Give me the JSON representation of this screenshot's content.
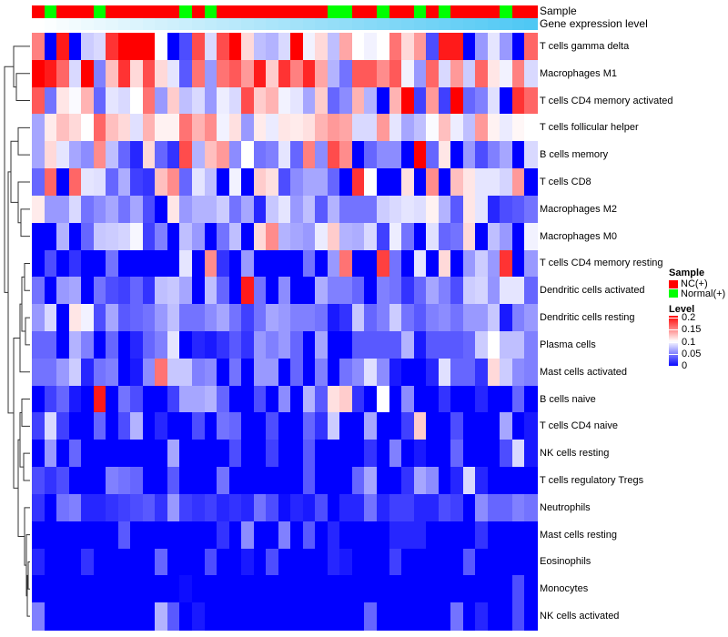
{
  "chart_data": {
    "type": "heatmap",
    "annotation_labels": {
      "sample": "Sample",
      "gene": "Gene expression level"
    },
    "rows": [
      "T cells gamma delta",
      "Macrophages M1",
      "T cells CD4 memory activated",
      "T cells follicular helper",
      "B cells memory",
      "T cells CD8",
      "Macrophages M2",
      "Macrophages M0",
      "T cells CD4 memory resting",
      "Dendritic cells activated",
      "Dendritic cells resting",
      "Plasma cells",
      "Mast cells activated",
      "B cells naive",
      "T cells CD4 naive",
      "NK cells resting",
      "T cells regulatory  Tregs",
      "Neutrophils",
      "Mast cells resting",
      "Eosinophils",
      "Monocytes",
      "NK cells activated"
    ],
    "sample_groups": [
      "NC(+)",
      "Normal(+)",
      "NC(+)",
      "NC(+)",
      "NC(+)",
      "Normal(+)",
      "NC(+)",
      "NC(+)",
      "NC(+)",
      "NC(+)",
      "NC(+)",
      "NC(+)",
      "Normal(+)",
      "NC(+)",
      "Normal(+)",
      "NC(+)",
      "NC(+)",
      "NC(+)",
      "NC(+)",
      "NC(+)",
      "NC(+)",
      "NC(+)",
      "NC(+)",
      "NC(+)",
      "Normal(+)",
      "Normal(+)",
      "NC(+)",
      "NC(+)",
      "Normal(+)",
      "NC(+)",
      "NC(+)",
      "Normal(+)",
      "NC(+)",
      "Normal(+)",
      "NC(+)",
      "NC(+)",
      "NC(+)",
      "NC(+)",
      "Normal(+)",
      "NC(+)",
      "NC(+)"
    ],
    "values": [
      [
        0.15,
        0,
        0.19,
        0,
        0.08,
        0.085,
        0.18,
        0.2,
        0.2,
        0.2,
        0.1,
        0,
        0.03,
        0.17,
        0.085,
        0.17,
        0.2,
        0.115,
        0.075,
        0.07,
        0.085,
        0.2,
        0.095,
        0.115,
        0.075,
        0.135,
        0.1,
        0.095,
        0.1,
        0.155,
        0.115,
        0.14,
        0.03,
        0.19,
        0.19,
        0,
        0.06,
        0.09,
        0.06,
        0,
        0.16
      ],
      [
        0.2,
        0.19,
        0.16,
        0.085,
        0.2,
        0.05,
        0.125,
        0.18,
        0.115,
        0.17,
        0.115,
        0.09,
        0.035,
        0.155,
        0.06,
        0.155,
        0.165,
        0.14,
        0.19,
        0.12,
        0.18,
        0.15,
        0.185,
        0.135,
        0.07,
        0.045,
        0.165,
        0.165,
        0.145,
        0.165,
        0.095,
        0.06,
        0.16,
        0.085,
        0.14,
        0.08,
        0.16,
        0.11,
        0.095,
        0.15,
        0.085
      ],
      [
        0.165,
        0.045,
        0.11,
        0.098,
        0.13,
        0.04,
        0.09,
        0.085,
        0.1,
        0.155,
        0.06,
        0.12,
        0.075,
        0.085,
        0.06,
        0.093,
        0.085,
        0.17,
        0.12,
        0.13,
        0.095,
        0.09,
        0.065,
        0.12,
        0.04,
        0.055,
        0.13,
        0.07,
        0,
        0.13,
        0.2,
        0.025,
        0.14,
        0.025,
        0.2,
        0.04,
        0.05,
        0.088,
        0,
        0.18,
        0.16
      ],
      [
        0.065,
        0.108,
        0.125,
        0.115,
        0.1,
        0.16,
        0.125,
        0.115,
        0.088,
        0.13,
        0.105,
        0.105,
        0.155,
        0.13,
        0.145,
        0.095,
        0.112,
        0.06,
        0.108,
        0.092,
        0.11,
        0.108,
        0.112,
        0.13,
        0.14,
        0.135,
        0.085,
        0.085,
        0.14,
        0.09,
        0.065,
        0.075,
        0.098,
        0.125,
        0.093,
        0.075,
        0.14,
        0.105,
        0.092,
        0.103,
        0.1
      ],
      [
        0.065,
        0.115,
        0.09,
        0.065,
        0.055,
        0.145,
        0.075,
        0.04,
        0.015,
        0.115,
        0.04,
        0.02,
        0.17,
        0.07,
        0.125,
        0.14,
        0.055,
        0.1,
        0.045,
        0.05,
        0.09,
        0.04,
        0.15,
        0.055,
        0.17,
        0.145,
        0,
        0.04,
        0.055,
        0.055,
        0,
        0.2,
        0.04,
        0.11,
        0,
        0.06,
        0.03,
        0.05,
        0.065,
        0,
        0.085
      ],
      [
        0.04,
        0.16,
        0,
        0.16,
        0.09,
        0.088,
        0.04,
        0.068,
        0.025,
        0.02,
        0.125,
        0.145,
        0.04,
        0.09,
        0.075,
        0,
        0.095,
        0,
        0.12,
        0.112,
        0.03,
        0.055,
        0.065,
        0.065,
        0.04,
        0,
        0.18,
        0.1,
        0,
        0,
        0.112,
        0,
        0.145,
        0,
        0.125,
        0.11,
        0.09,
        0.09,
        0.083,
        0.14,
        0
      ],
      [
        0.108,
        0.06,
        0.06,
        0.085,
        0.045,
        0.055,
        0.065,
        0.045,
        0.065,
        0.03,
        0,
        0.11,
        0.06,
        0.07,
        0.07,
        0.08,
        0.045,
        0.065,
        0.015,
        0.078,
        0.09,
        0.06,
        0.075,
        0.035,
        0.07,
        0.045,
        0.045,
        0.045,
        0.08,
        0.085,
        0.09,
        0.087,
        0.105,
        0.07,
        0.035,
        0.11,
        0.09,
        0.015,
        0.03,
        0.035,
        0.045
      ],
      [
        0,
        0,
        0.07,
        0,
        0.04,
        0.078,
        0.08,
        0.083,
        0.097,
        0.025,
        0.05,
        0,
        0.075,
        0.06,
        0,
        0.045,
        0.075,
        0,
        0.115,
        0.145,
        0.07,
        0.065,
        0.06,
        0.092,
        0.12,
        0.07,
        0.068,
        0.085,
        0.025,
        0.093,
        0.045,
        0,
        0.088,
        0.04,
        0.045,
        0.115,
        0,
        0.075,
        0.06,
        0,
        0.095
      ],
      [
        0,
        0.03,
        0,
        0.02,
        0,
        0,
        0.045,
        0,
        0,
        0,
        0,
        0,
        0.09,
        0,
        0.145,
        0.02,
        0,
        0.06,
        0,
        0,
        0,
        0,
        0.045,
        0,
        0.06,
        0.155,
        0,
        0,
        0.175,
        0.045,
        0,
        0.09,
        0,
        0.115,
        0,
        0.06,
        0.08,
        0.06,
        0.18,
        0,
        0.06
      ],
      [
        0.045,
        0,
        0.06,
        0.065,
        0,
        0.045,
        0.03,
        0.025,
        0.04,
        0.02,
        0.075,
        0.078,
        0.065,
        0,
        0.075,
        0.04,
        0,
        0.19,
        0.045,
        0,
        0.055,
        0,
        0,
        0.068,
        0.05,
        0.05,
        0.04,
        0,
        0.05,
        0.045,
        0.02,
        0.04,
        0.065,
        0.05,
        0.03,
        0.08,
        0.083,
        0.058,
        0.09,
        0.09,
        0.04
      ],
      [
        0.06,
        0.085,
        0,
        0.11,
        0.095,
        0.03,
        0.065,
        0.035,
        0.04,
        0.045,
        0.06,
        0.075,
        0.045,
        0.045,
        0.055,
        0.065,
        0.045,
        0.025,
        0.045,
        0.065,
        0.06,
        0.05,
        0.05,
        0.045,
        0.01,
        0.02,
        0.078,
        0.04,
        0.05,
        0.08,
        0.045,
        0.035,
        0.05,
        0.055,
        0.045,
        0.06,
        0.06,
        0.078,
        0.01,
        0.05,
        0.06
      ],
      [
        0.04,
        0.04,
        0,
        0.07,
        0.05,
        0,
        0.04,
        0,
        0.015,
        0.04,
        0.05,
        0.09,
        0,
        0.015,
        0.01,
        0.02,
        0.035,
        0.02,
        0.06,
        0.05,
        0.06,
        0.04,
        0,
        0.065,
        0,
        0,
        0.035,
        0.035,
        0.035,
        0.035,
        0.07,
        0.01,
        0.035,
        0.035,
        0.035,
        0.04,
        0.08,
        0.1,
        0.075,
        0.075,
        0.05
      ],
      [
        0.045,
        0.045,
        0.06,
        0.08,
        0.015,
        0.045,
        0.05,
        0,
        0.01,
        0.055,
        0.155,
        0.078,
        0.078,
        0.05,
        0.055,
        0,
        0.045,
        0,
        0.06,
        0.06,
        0,
        0.04,
        0,
        0.05,
        0,
        0.045,
        0.055,
        0.088,
        0.055,
        0.01,
        0,
        0,
        0.015,
        0.088,
        0.04,
        0.04,
        0.02,
        0.115,
        0.08,
        0.055,
        0.05
      ],
      [
        0,
        0.025,
        0.04,
        0.01,
        0,
        0.19,
        0,
        0.045,
        0.03,
        0,
        0,
        0.025,
        0.065,
        0.065,
        0.07,
        0.04,
        0,
        0,
        0.03,
        0,
        0.055,
        0,
        0.07,
        0.035,
        0.112,
        0.12,
        0.02,
        0,
        0.1,
        0,
        0.055,
        0,
        0,
        0.02,
        0,
        0,
        0.015,
        0,
        0,
        0.04,
        0
      ],
      [
        0.025,
        0.085,
        0.025,
        0,
        0,
        0.04,
        0,
        0.03,
        0.07,
        0,
        0.015,
        0,
        0,
        0.03,
        0,
        0.045,
        0.04,
        0,
        0,
        0.03,
        0,
        0,
        0.04,
        0.02,
        0.08,
        0,
        0,
        0.065,
        0,
        0,
        0.025,
        0.12,
        0,
        0,
        0.03,
        0,
        0,
        0,
        0.065,
        0,
        0.01
      ],
      [
        0,
        0.06,
        0,
        0.04,
        0,
        0,
        0,
        0,
        0,
        0,
        0,
        0.065,
        0,
        0,
        0,
        0,
        0.03,
        0,
        0,
        0.025,
        0,
        0,
        0.035,
        0,
        0,
        0,
        0,
        0.02,
        0,
        0.05,
        0,
        0.01,
        0,
        0,
        0.04,
        0,
        0,
        0,
        0.03,
        0.085,
        0.01
      ],
      [
        0.03,
        0.02,
        0.03,
        0,
        0,
        0,
        0.05,
        0.045,
        0.04,
        0,
        0,
        0.035,
        0,
        0,
        0,
        0.045,
        0,
        0,
        0,
        0,
        0,
        0,
        0.035,
        0,
        0,
        0,
        0.04,
        0.065,
        0,
        0,
        0.02,
        0.065,
        0.055,
        0,
        0.015,
        0.085,
        0.015,
        0,
        0,
        0,
        0
      ],
      [
        0.02,
        0,
        0.045,
        0.05,
        0.015,
        0.015,
        0.02,
        0.025,
        0.03,
        0.035,
        0.02,
        0.06,
        0.025,
        0.02,
        0.025,
        0.015,
        0.02,
        0.015,
        0.045,
        0.03,
        0.005,
        0.015,
        0.01,
        0.03,
        0,
        0.015,
        0.015,
        0.045,
        0.015,
        0.025,
        0.025,
        0.015,
        0.015,
        0.03,
        0.025,
        0,
        0.055,
        0.04,
        0.04,
        0.05,
        0.045
      ],
      [
        0,
        0,
        0,
        0,
        0,
        0,
        0,
        0.035,
        0,
        0,
        0,
        0,
        0,
        0,
        0,
        0.02,
        0,
        0.055,
        0,
        0,
        0.05,
        0,
        0.035,
        0,
        0.015,
        0,
        0,
        0,
        0,
        0.015,
        0.015,
        0.015,
        0,
        0,
        0,
        0,
        0.02,
        0,
        0,
        0,
        0
      ],
      [
        0.015,
        0,
        0,
        0,
        0.02,
        0,
        0,
        0,
        0,
        0,
        0.04,
        0,
        0,
        0,
        0.03,
        0,
        0,
        0.01,
        0,
        0.03,
        0,
        0,
        0,
        0,
        0.015,
        0.01,
        0,
        0,
        0,
        0.025,
        0,
        0,
        0,
        0,
        0,
        0.035,
        0,
        0,
        0,
        0,
        0
      ],
      [
        0,
        0,
        0,
        0,
        0,
        0,
        0,
        0,
        0,
        0,
        0,
        0,
        0.005,
        0,
        0,
        0,
        0,
        0,
        0,
        0,
        0,
        0,
        0,
        0,
        0,
        0,
        0,
        0,
        0,
        0,
        0,
        0,
        0,
        0,
        0,
        0,
        0,
        0,
        0,
        0.03,
        0
      ],
      [
        0.05,
        0,
        0,
        0,
        0,
        0,
        0,
        0,
        0,
        0,
        0.07,
        0.035,
        0,
        0.01,
        0,
        0,
        0,
        0,
        0,
        0,
        0,
        0,
        0,
        0,
        0,
        0,
        0,
        0.04,
        0,
        0,
        0,
        0,
        0,
        0,
        0.045,
        0,
        0.015,
        0,
        0,
        0.03,
        0
      ]
    ],
    "color_scale": {
      "min": 0,
      "mid": 0.1,
      "max": 0.2,
      "low": "#0000ff",
      "middle": "#ffffff",
      "high": "#ff0000"
    },
    "legend": {
      "sample_title": "Sample",
      "sample_items": [
        {
          "label": "NC(+)",
          "color": "#ff0000"
        },
        {
          "label": "Normal(+)",
          "color": "#00ff00"
        }
      ],
      "level_title": "Level",
      "level_ticks": [
        "0.2",
        "0.15",
        "0.1",
        "0.05",
        "0"
      ]
    },
    "gene_bar_colors": [
      "#ffffff",
      "#4fc8f4"
    ]
  }
}
